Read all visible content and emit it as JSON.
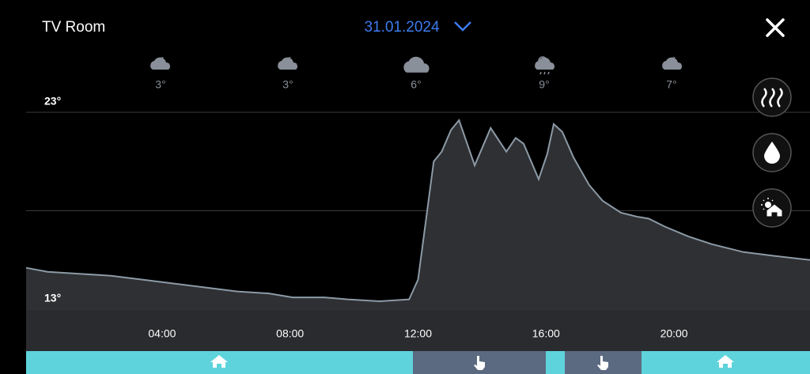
{
  "header": {
    "room": "TV Room",
    "date": "31.01.2024"
  },
  "weather": [
    "3°",
    "3°",
    "6°",
    "9°",
    "7°"
  ],
  "chart_data": {
    "type": "area",
    "x": [
      -0.25,
      0.42,
      1.41,
      2.4,
      3.38,
      4.37,
      5.36,
      6.35,
      7.34,
      8.08,
      9.07,
      9.81,
      10.8,
      11.72,
      12.0,
      12.49,
      12.74,
      13.03,
      13.28,
      13.77,
      14.27,
      14.76,
      15.05,
      15.3,
      15.77,
      16.04,
      16.24,
      16.51,
      16.86,
      17.35,
      17.77,
      18.34,
      18.84,
      19.21,
      19.7,
      20.44,
      21.18,
      22.17,
      23.16,
      24.25
    ],
    "values": [
      15.1,
      14.9,
      14.8,
      14.7,
      14.5,
      14.3,
      14.1,
      13.9,
      13.8,
      13.6,
      13.6,
      13.5,
      13.4,
      13.5,
      14.5,
      20.5,
      21.0,
      22.1,
      22.6,
      20.3,
      22.2,
      21.0,
      21.7,
      21.4,
      19.6,
      20.9,
      22.4,
      22.0,
      20.7,
      19.3,
      18.5,
      17.9,
      17.7,
      17.6,
      17.2,
      16.7,
      16.3,
      15.9,
      15.7,
      15.5
    ],
    "color": "#8c9aa6",
    "xlim": [
      -0.25,
      24.25
    ],
    "ylim": [
      13,
      23
    ],
    "xticks": [
      {
        "value": 4,
        "label": "04:00"
      },
      {
        "value": 8,
        "label": "08:00"
      },
      {
        "value": 12,
        "label": "12:00"
      },
      {
        "value": 16,
        "label": "16:00"
      },
      {
        "value": 20,
        "label": "20:00"
      }
    ],
    "yticks": [
      {
        "value": 13,
        "label": "13°"
      },
      {
        "value": 18,
        "label": null
      },
      {
        "value": 23,
        "label": "23°"
      }
    ],
    "grid": true
  }
}
